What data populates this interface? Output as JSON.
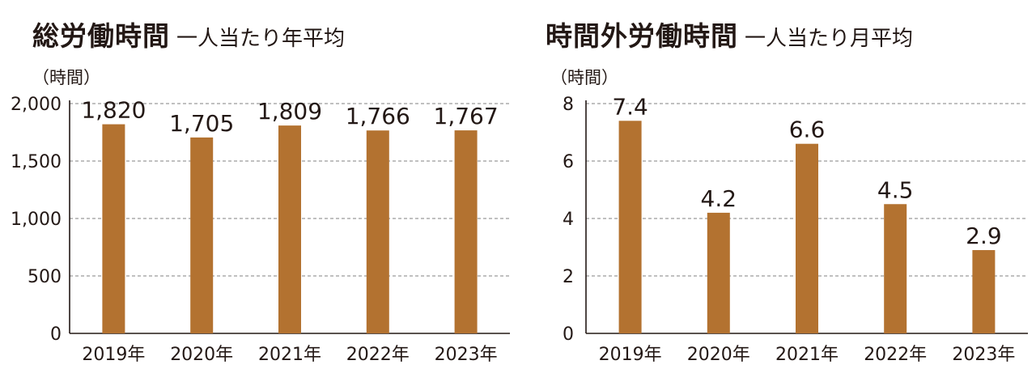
{
  "chart_data": [
    {
      "type": "bar",
      "title": "総労働時間",
      "subtitle": "一人当たり年平均",
      "unit_label": "（時間）",
      "categories": [
        "2019年",
        "2020年",
        "2021年",
        "2022年",
        "2023年"
      ],
      "values": [
        1820,
        1705,
        1809,
        1766,
        1767
      ],
      "value_labels": [
        "1,820",
        "1,705",
        "1,809",
        "1,766",
        "1,767"
      ],
      "yticks": [
        0,
        500,
        1000,
        1500,
        2000
      ],
      "ytick_labels": [
        "0",
        "500",
        "1,000",
        "1,500",
        "2,000"
      ],
      "ylim": [
        0,
        2000
      ],
      "grid": true,
      "bar_color": "#b37230"
    },
    {
      "type": "bar",
      "title": "時間外労働時間",
      "subtitle": "一人当たり月平均",
      "unit_label": "（時間）",
      "categories": [
        "2019年",
        "2020年",
        "2021年",
        "2022年",
        "2023年"
      ],
      "values": [
        7.4,
        4.2,
        6.6,
        4.5,
        2.9
      ],
      "value_labels": [
        "7.4",
        "4.2",
        "6.6",
        "4.5",
        "2.9"
      ],
      "yticks": [
        0,
        2,
        4,
        6,
        8
      ],
      "ytick_labels": [
        "0",
        "2",
        "4",
        "6",
        "8"
      ],
      "ylim": [
        0,
        8
      ],
      "grid": true,
      "bar_color": "#b37230"
    }
  ]
}
